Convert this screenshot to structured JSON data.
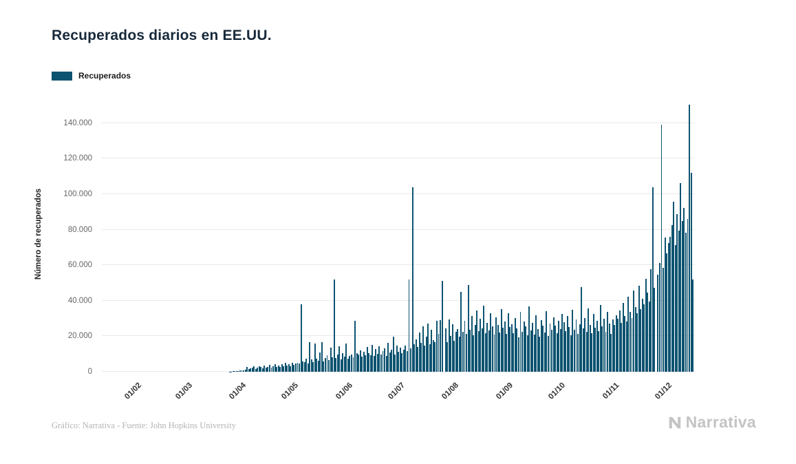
{
  "legend": {
    "label": "Recuperados"
  },
  "footer": {
    "caption": "Gráfico: Narrativa - Fuente: John Hopkins University",
    "logo_text": "Narrativa"
  },
  "colors": {
    "bar": "#0d5370",
    "grid": "#e9e9e9",
    "title": "#17293a",
    "tick": "#666666",
    "footer": "#b3b3b3",
    "logo": "#c4c4c4"
  },
  "chart_data": {
    "type": "bar",
    "title": "Recuperados diarios en EE.UU.",
    "xlabel": "",
    "ylabel": "Número de recuperados",
    "legend": [
      "Recuperados"
    ],
    "legend_position": "top-left",
    "grid": "horizontal",
    "y_ticks": [
      0,
      20000,
      40000,
      60000,
      80000,
      100000,
      120000,
      140000
    ],
    "y_tick_labels": [
      "0",
      "20.000",
      "40.000",
      "60.000",
      "80.000",
      "100.000",
      "120.000",
      "140.000"
    ],
    "y_max": 155000,
    "x_tick_labels": [
      "01/02",
      "01/03",
      "01/04",
      "01/05",
      "01/06",
      "01/07",
      "01/08",
      "01/09",
      "01/10",
      "01/11",
      "01/12"
    ],
    "x_tick_indices": [
      22,
      51,
      82,
      112,
      143,
      173,
      204,
      235,
      265,
      296,
      326
    ],
    "values": [
      0,
      0,
      0,
      0,
      0,
      0,
      0,
      0,
      0,
      0,
      0,
      0,
      0,
      0,
      0,
      0,
      0,
      0,
      0,
      0,
      0,
      0,
      0,
      0,
      0,
      0,
      0,
      0,
      0,
      0,
      0,
      0,
      0,
      0,
      0,
      0,
      0,
      0,
      0,
      0,
      0,
      0,
      0,
      0,
      0,
      0,
      0,
      0,
      0,
      0,
      0,
      0,
      0,
      0,
      0,
      0,
      0,
      0,
      0,
      0,
      0,
      0,
      0,
      0,
      0,
      0,
      0,
      0,
      0,
      0,
      0,
      0,
      0,
      100,
      150,
      200,
      300,
      400,
      500,
      600,
      700,
      900,
      1200,
      2800,
      1500,
      1800,
      2200,
      3200,
      1700,
      2500,
      3000,
      2600,
      2100,
      3400,
      2200,
      2900,
      3800,
      2400,
      3100,
      4200,
      2800,
      3500,
      2600,
      4100,
      3200,
      5200,
      3600,
      4400,
      3000,
      5000,
      3800,
      4600,
      5200,
      4500,
      38000,
      6000,
      5500,
      7200,
      4800,
      16500,
      6800,
      5600,
      16000,
      7400,
      6200,
      11000,
      16800,
      5800,
      7600,
      9200,
      6400,
      13500,
      8200,
      52000,
      7800,
      9600,
      14200,
      6800,
      10400,
      8600,
      15800,
      7200,
      9000,
      9500,
      8200,
      28500,
      10400,
      9800,
      12200,
      8600,
      11400,
      9200,
      13800,
      10600,
      9400,
      15200,
      8800,
      12600,
      10200,
      14400,
      9600,
      11800,
      13200,
      9000,
      16400,
      10800,
      12400,
      19600,
      9800,
      14800,
      11200,
      13600,
      10400,
      12400,
      14800,
      11600,
      52000,
      13200,
      104000,
      15600,
      18400,
      13800,
      22000,
      16200,
      25400,
      14600,
      19800,
      27200,
      15400,
      23600,
      17800,
      16600,
      28800,
      21400,
      29000,
      51000,
      0,
      24600,
      16800,
      29400,
      20200,
      26800,
      17400,
      22400,
      24200,
      19600,
      44800,
      22400,
      28600,
      21200,
      49000,
      23800,
      31400,
      20400,
      26200,
      34600,
      22800,
      29800,
      24400,
      37200,
      21600,
      27400,
      23200,
      32800,
      25600,
      20800,
      30600,
      26400,
      22000,
      35400,
      24800,
      28200,
      21400,
      33000,
      25200,
      26600,
      21800,
      30200,
      24600,
      19400,
      33600,
      22600,
      28400,
      25400,
      20600,
      36800,
      23400,
      27600,
      21000,
      31800,
      24200,
      19800,
      29200,
      26000,
      22200,
      34200,
      20200,
      27000,
      23600,
      30800,
      25800,
      21600,
      28800,
      24000,
      32400,
      27800,
      22800,
      31200,
      25000,
      20400,
      34800,
      23800,
      29600,
      21200,
      26800,
      47500,
      24400,
      30400,
      22400,
      35600,
      26200,
      21800,
      32600,
      24800,
      28600,
      23000,
      37400,
      25600,
      30000,
      22600,
      33800,
      27200,
      21400,
      29400,
      26400,
      31600,
      29800,
      34600,
      27400,
      38800,
      31400,
      28200,
      42400,
      33600,
      30200,
      45800,
      36400,
      32800,
      48600,
      35200,
      41200,
      38000,
      52400,
      44600,
      39400,
      57800,
      104000,
      47200,
      0,
      54600,
      61200,
      139000,
      58400,
      75600,
      66800,
      72400,
      76000,
      82400,
      95800,
      71200,
      88600,
      79400,
      106200,
      84800,
      92400,
      78200,
      86200,
      150400,
      111800,
      52000
    ]
  }
}
